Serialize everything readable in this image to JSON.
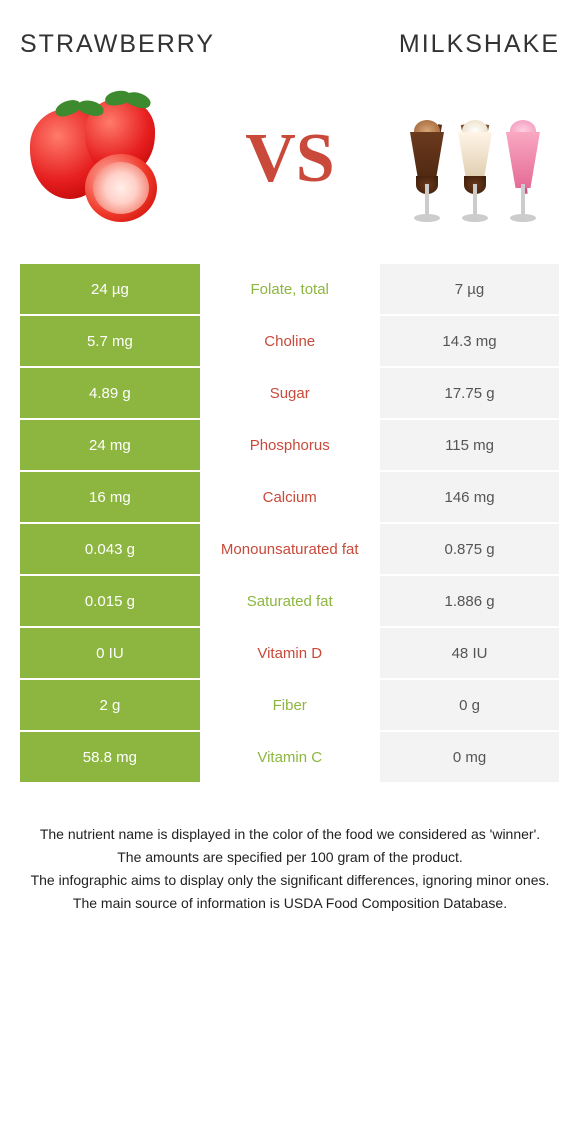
{
  "colors": {
    "green": "#8cb63f",
    "red": "#c9493a",
    "grey_bg": "#f3f3f3",
    "white": "#ffffff",
    "text_dark": "#333333",
    "text_grey": "#555555"
  },
  "header": {
    "left_title": "STRAWBERRY",
    "right_title": "MILKSHAKE",
    "vs_label": "VS"
  },
  "rows": [
    {
      "left": "24 µg",
      "label": "Folate, total",
      "right": "7 µg",
      "winner": "left"
    },
    {
      "left": "5.7 mg",
      "label": "Choline",
      "right": "14.3 mg",
      "winner": "right"
    },
    {
      "left": "4.89 g",
      "label": "Sugar",
      "right": "17.75 g",
      "winner": "right"
    },
    {
      "left": "24 mg",
      "label": "Phosphorus",
      "right": "115 mg",
      "winner": "right"
    },
    {
      "left": "16 mg",
      "label": "Calcium",
      "right": "146 mg",
      "winner": "right"
    },
    {
      "left": "0.043 g",
      "label": "Monounsaturated fat",
      "right": "0.875 g",
      "winner": "right"
    },
    {
      "left": "0.015 g",
      "label": "Saturated fat",
      "right": "1.886 g",
      "winner": "left"
    },
    {
      "left": "0 IU",
      "label": "Vitamin D",
      "right": "48 IU",
      "winner": "right"
    },
    {
      "left": "2 g",
      "label": "Fiber",
      "right": "0 g",
      "winner": "left"
    },
    {
      "left": "58.8 mg",
      "label": "Vitamin C",
      "right": "0 mg",
      "winner": "left"
    }
  ],
  "footer": {
    "line1": "The nutrient name is displayed in the color of the food we considered as 'winner'.",
    "line2": "The amounts are specified per 100 gram of the product.",
    "line3": "The infographic aims to display only the significant differences, ignoring minor ones.",
    "line4": "The main source of information is USDA Food Composition Database."
  }
}
